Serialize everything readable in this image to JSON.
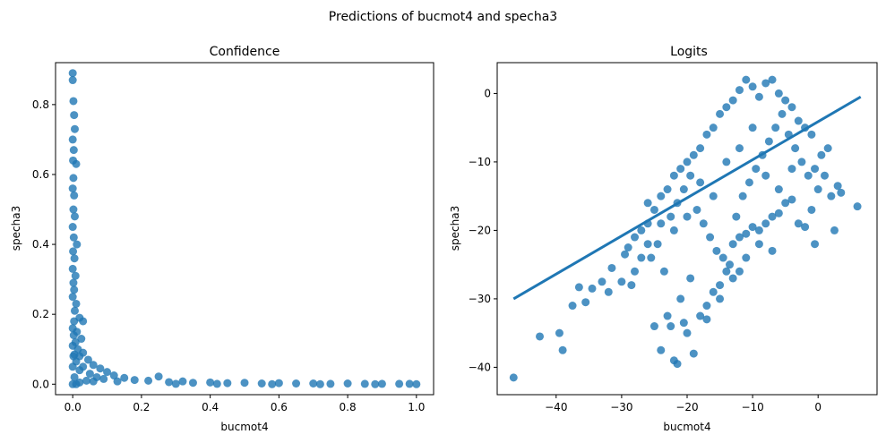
{
  "figure": {
    "suptitle": "Predictions of bucmot4 and specha3",
    "point_color": "#1f77b4"
  },
  "chart_data": [
    {
      "type": "scatter",
      "title": "Confidence",
      "xlabel": "bucmot4",
      "ylabel": "specha3",
      "xlim": [
        -0.05,
        1.05
      ],
      "ylim": [
        -0.03,
        0.92
      ],
      "xticks": [
        0.0,
        0.2,
        0.4,
        0.6,
        0.8,
        1.0
      ],
      "xtick_labels": [
        "0.0",
        "0.2",
        "0.4",
        "0.6",
        "0.8",
        "1.0"
      ],
      "yticks": [
        0.0,
        0.2,
        0.4,
        0.6,
        0.8
      ],
      "ytick_labels": [
        "0.0",
        "0.2",
        "0.4",
        "0.6",
        "0.8"
      ],
      "grid": false,
      "series": [
        {
          "color": "#1f77b4",
          "points": [
            [
              0.0,
              0.89
            ],
            [
              0.0,
              0.87
            ],
            [
              0.002,
              0.81
            ],
            [
              0.004,
              0.77
            ],
            [
              0.006,
              0.73
            ],
            [
              0.0,
              0.7
            ],
            [
              0.003,
              0.67
            ],
            [
              0.001,
              0.64
            ],
            [
              0.01,
              0.63
            ],
            [
              0.002,
              0.59
            ],
            [
              0.0,
              0.56
            ],
            [
              0.004,
              0.54
            ],
            [
              0.002,
              0.5
            ],
            [
              0.006,
              0.48
            ],
            [
              0.0,
              0.45
            ],
            [
              0.003,
              0.42
            ],
            [
              0.012,
              0.4
            ],
            [
              0.001,
              0.38
            ],
            [
              0.005,
              0.36
            ],
            [
              0.0,
              0.33
            ],
            [
              0.008,
              0.31
            ],
            [
              0.002,
              0.29
            ],
            [
              0.004,
              0.27
            ],
            [
              0.0,
              0.25
            ],
            [
              0.01,
              0.23
            ],
            [
              0.006,
              0.21
            ],
            [
              0.02,
              0.19
            ],
            [
              0.004,
              0.18
            ],
            [
              0.03,
              0.18
            ],
            [
              0.0,
              0.16
            ],
            [
              0.012,
              0.15
            ],
            [
              0.003,
              0.14
            ],
            [
              0.025,
              0.13
            ],
            [
              0.008,
              0.12
            ],
            [
              0.0,
              0.11
            ],
            [
              0.015,
              0.1
            ],
            [
              0.03,
              0.09
            ],
            [
              0.005,
              0.085
            ],
            [
              0.02,
              0.08
            ],
            [
              0.045,
              0.07
            ],
            [
              0.01,
              0.065
            ],
            [
              0.06,
              0.055
            ],
            [
              0.03,
              0.05
            ],
            [
              0.08,
              0.045
            ],
            [
              0.02,
              0.04
            ],
            [
              0.1,
              0.035
            ],
            [
              0.05,
              0.03
            ],
            [
              0.12,
              0.025
            ],
            [
              0.07,
              0.02
            ],
            [
              0.15,
              0.018
            ],
            [
              0.09,
              0.015
            ],
            [
              0.18,
              0.012
            ],
            [
              0.25,
              0.022
            ],
            [
              0.22,
              0.01
            ],
            [
              0.13,
              0.008
            ],
            [
              0.28,
              0.006
            ],
            [
              0.32,
              0.008
            ],
            [
              0.35,
              0.004
            ],
            [
              0.4,
              0.005
            ],
            [
              0.45,
              0.003
            ],
            [
              0.5,
              0.004
            ],
            [
              0.55,
              0.002
            ],
            [
              0.6,
              0.003
            ],
            [
              0.65,
              0.002
            ],
            [
              0.7,
              0.002
            ],
            [
              0.75,
              0.001
            ],
            [
              0.8,
              0.002
            ],
            [
              0.85,
              0.001
            ],
            [
              0.9,
              0.001
            ],
            [
              0.95,
              0.001
            ],
            [
              0.98,
              0.001
            ],
            [
              1.0,
              0.0
            ],
            [
              0.0,
              0.0
            ],
            [
              0.01,
              0.0
            ],
            [
              0.02,
              0.005
            ],
            [
              0.005,
              0.02
            ],
            [
              0.04,
              0.01
            ],
            [
              0.06,
              0.008
            ],
            [
              0.0,
              0.05
            ],
            [
              0.002,
              0.08
            ],
            [
              0.3,
              0.001
            ],
            [
              0.42,
              0.001
            ],
            [
              0.58,
              0.0
            ],
            [
              0.72,
              0.0
            ],
            [
              0.88,
              0.0
            ]
          ]
        }
      ]
    },
    {
      "type": "scatter",
      "title": "Logits",
      "xlabel": "bucmot4",
      "ylabel": "specha3",
      "xlim": [
        -49,
        9
      ],
      "ylim": [
        -44,
        4.5
      ],
      "xticks": [
        -40,
        -30,
        -20,
        -10,
        0
      ],
      "xtick_labels": [
        "−40",
        "−30",
        "−20",
        "−10",
        "0"
      ],
      "yticks": [
        0,
        -10,
        -20,
        -30,
        -40
      ],
      "ytick_labels": [
        "0",
        "−10",
        "−20",
        "−30",
        "−40"
      ],
      "grid": false,
      "regression_line": {
        "x": [
          -46.5,
          6.5
        ],
        "y": [
          -30,
          -0.5
        ]
      },
      "series": [
        {
          "color": "#1f77b4",
          "points": [
            [
              -46.5,
              -41.5
            ],
            [
              -42.5,
              -35.5
            ],
            [
              -39.5,
              -35
            ],
            [
              -39,
              -37.5
            ],
            [
              -37.5,
              -31
            ],
            [
              -36.5,
              -28.3
            ],
            [
              -35.5,
              -30.5
            ],
            [
              -34.5,
              -28.5
            ],
            [
              -33,
              -27.5
            ],
            [
              -32,
              -29
            ],
            [
              -31.5,
              -25.5
            ],
            [
              -30,
              -27.5
            ],
            [
              -29.5,
              -23.5
            ],
            [
              -28.5,
              -28
            ],
            [
              -28,
              -26
            ],
            [
              -27,
              -24
            ],
            [
              -26,
              -22
            ],
            [
              -25,
              -34
            ],
            [
              -24,
              -37.5
            ],
            [
              -23,
              -32.5
            ],
            [
              -22.5,
              -34
            ],
            [
              -22,
              -39
            ],
            [
              -21.5,
              -39.5
            ],
            [
              -20.5,
              -33.5
            ],
            [
              -20,
              -35
            ],
            [
              -19,
              -38
            ],
            [
              -18,
              -32.5
            ],
            [
              -17,
              -31
            ],
            [
              -16,
              -29
            ],
            [
              -15,
              -28
            ],
            [
              -21,
              -30
            ],
            [
              -19.5,
              -27
            ],
            [
              -14,
              -26
            ],
            [
              -13,
              -22
            ],
            [
              -12,
              -21
            ],
            [
              -11,
              -20.5
            ],
            [
              -10,
              -19.5
            ],
            [
              -9,
              -20
            ],
            [
              -8,
              -19
            ],
            [
              -7,
              -18
            ],
            [
              -6,
              -17.5
            ],
            [
              -5,
              -16
            ],
            [
              -4,
              -15.5
            ],
            [
              -3,
              -19
            ],
            [
              -2,
              -19.5
            ],
            [
              -1,
              -17
            ],
            [
              0,
              -14
            ],
            [
              1,
              -12
            ],
            [
              2,
              -15
            ],
            [
              3,
              -13.5
            ],
            [
              3.5,
              -14.5
            ],
            [
              6,
              -16.5
            ],
            [
              2.5,
              -20
            ],
            [
              -0.5,
              -22
            ],
            [
              -7,
              2
            ],
            [
              -8,
              1.5
            ],
            [
              -10,
              1
            ],
            [
              -11,
              2
            ],
            [
              -12,
              0.5
            ],
            [
              -13,
              -1
            ],
            [
              -14,
              -2
            ],
            [
              -15,
              -3
            ],
            [
              -9,
              -0.5
            ],
            [
              -6,
              0
            ],
            [
              -5,
              -1
            ],
            [
              -4,
              -2
            ],
            [
              -3,
              -4
            ],
            [
              -2,
              -5
            ],
            [
              -1,
              -6
            ],
            [
              -16,
              -5
            ],
            [
              -17,
              -6
            ],
            [
              -18,
              -8
            ],
            [
              -19,
              -9
            ],
            [
              -20,
              -10
            ],
            [
              -21,
              -11
            ],
            [
              -22,
              -12
            ],
            [
              -23,
              -14
            ],
            [
              -24,
              -15
            ],
            [
              -25,
              -17
            ],
            [
              -26,
              -19
            ],
            [
              -27,
              -20
            ],
            [
              -28,
              -21
            ],
            [
              -29,
              -22.5
            ],
            [
              -25.5,
              -24
            ],
            [
              -24.5,
              -22
            ],
            [
              -23.5,
              -26
            ],
            [
              -22.5,
              -18
            ],
            [
              -21.5,
              -16
            ],
            [
              -20.5,
              -14
            ],
            [
              -19.5,
              -12
            ],
            [
              -18.5,
              -17
            ],
            [
              -17.5,
              -19
            ],
            [
              -16.5,
              -21
            ],
            [
              -15.5,
              -23
            ],
            [
              -14.5,
              -24
            ],
            [
              -13.5,
              -25
            ],
            [
              -12.5,
              -18
            ],
            [
              -11.5,
              -15
            ],
            [
              -10.5,
              -13
            ],
            [
              -9.5,
              -11
            ],
            [
              -8.5,
              -9
            ],
            [
              -7.5,
              -7
            ],
            [
              -6.5,
              -5
            ],
            [
              -5.5,
              -3
            ],
            [
              -4.5,
              -6
            ],
            [
              -3.5,
              -8
            ],
            [
              -2.5,
              -10
            ],
            [
              -1.5,
              -12
            ],
            [
              -0.5,
              -11
            ],
            [
              0.5,
              -9
            ],
            [
              1.5,
              -8
            ],
            [
              -10,
              -5
            ],
            [
              -12,
              -8
            ],
            [
              -14,
              -10
            ],
            [
              -8,
              -12
            ],
            [
              -6,
              -14
            ],
            [
              -4,
              -11
            ],
            [
              -16,
              -15
            ],
            [
              -18,
              -13
            ],
            [
              -20,
              -18
            ],
            [
              -22,
              -20
            ],
            [
              -24,
              -19
            ],
            [
              -26,
              -16
            ],
            [
              -11,
              -24
            ],
            [
              -9,
              -22
            ],
            [
              -7,
              -23
            ],
            [
              -13,
              -27
            ],
            [
              -15,
              -30
            ],
            [
              -17,
              -33
            ],
            [
              -12,
              -26
            ]
          ]
        }
      ]
    }
  ]
}
